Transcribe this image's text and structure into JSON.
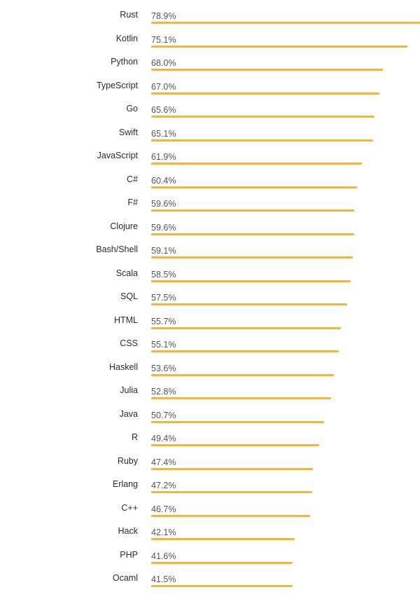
{
  "chart_data": {
    "type": "bar",
    "orientation": "horizontal",
    "value_suffix": "%",
    "color": "#F4B63A",
    "xlim": [
      0,
      78.9
    ],
    "categories": [
      "Rust",
      "Kotlin",
      "Python",
      "TypeScript",
      "Go",
      "Swift",
      "JavaScript",
      "C#",
      "F#",
      "Clojure",
      "Bash/Shell",
      "Scala",
      "SQL",
      "HTML",
      "CSS",
      "Haskell",
      "Julia",
      "Java",
      "R",
      "Ruby",
      "Erlang",
      "C++",
      "Hack",
      "PHP",
      "Ocaml"
    ],
    "values": [
      78.9,
      75.1,
      68.0,
      67.0,
      65.6,
      65.1,
      61.9,
      60.4,
      59.6,
      59.6,
      59.1,
      58.5,
      57.5,
      55.7,
      55.1,
      53.6,
      52.8,
      50.7,
      49.4,
      47.4,
      47.2,
      46.7,
      42.1,
      41.6,
      41.5
    ],
    "value_labels": [
      "78.9%",
      "75.1%",
      "68.0%",
      "67.0%",
      "65.6%",
      "65.1%",
      "61.9%",
      "60.4%",
      "59.6%",
      "59.6%",
      "59.1%",
      "58.5%",
      "57.5%",
      "55.7%",
      "55.1%",
      "53.6%",
      "52.8%",
      "50.7%",
      "49.4%",
      "47.4%",
      "47.2%",
      "46.7%",
      "42.1%",
      "41.6%",
      "41.5%"
    ]
  }
}
